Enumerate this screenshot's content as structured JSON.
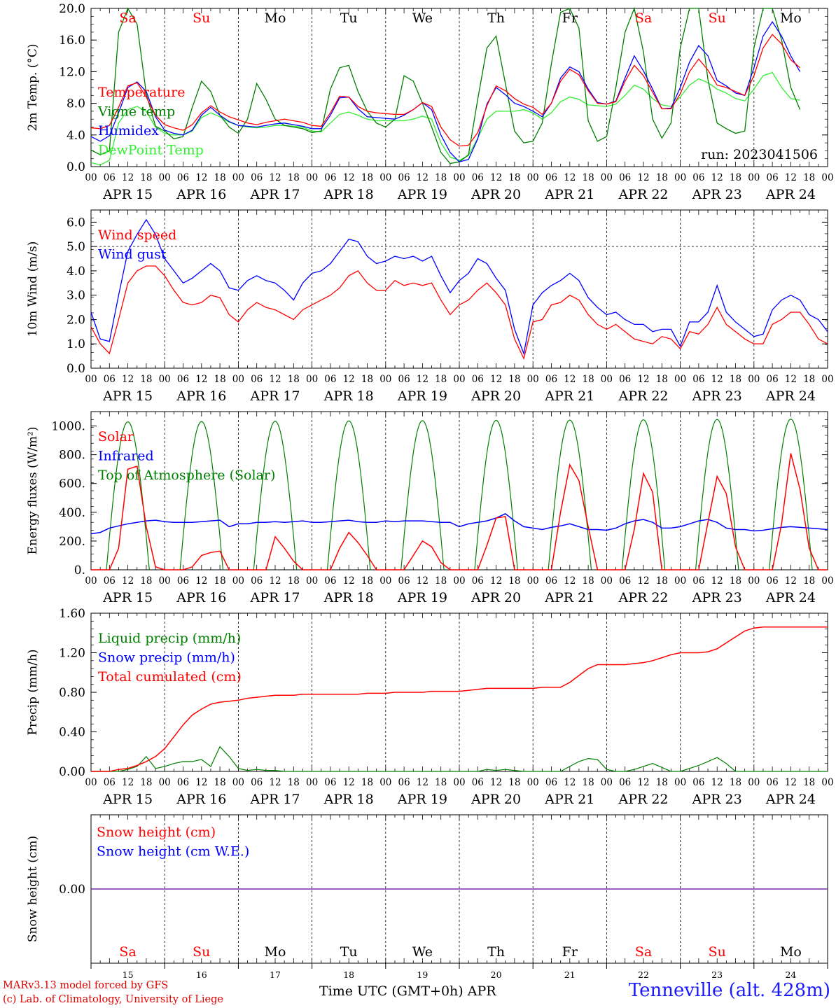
{
  "days": [
    "Sa",
    "Su",
    "Mo",
    "Tu",
    "We",
    "Th",
    "Fr",
    "Sa",
    "Su",
    "Mo"
  ],
  "weekend_flags": [
    true,
    true,
    false,
    false,
    false,
    false,
    false,
    true,
    true,
    false
  ],
  "dates": [
    "APR 15",
    "APR 16",
    "APR 17",
    "APR 18",
    "APR 19",
    "APR 20",
    "APR 21",
    "APR 22",
    "APR 23",
    "APR 24"
  ],
  "day_numbers": [
    "15",
    "16",
    "17",
    "18",
    "19",
    "20",
    "21",
    "22",
    "23",
    "24"
  ],
  "hour_labels": [
    "00",
    "06",
    "12",
    "18"
  ],
  "hour_label_end": "00",
  "run_label": "run: 2023041506",
  "footer": {
    "credit_1": "MARv3.13 model forced by GFS",
    "credit_2": "(c) Lab. of Climatology, University of Liege",
    "x_title": "Time UTC (GMT+0h) APR",
    "station": "Tenneville (alt. 428m)"
  },
  "colors": {
    "red": "#ff0000",
    "green": "#008000",
    "blue": "#0000ff",
    "lightgreen": "#33ee33",
    "purple": "#7a2aa8",
    "weekend": "#ff0000"
  },
  "chart_data": [
    {
      "type": "line",
      "ylabel": "2m Temp. (°C)",
      "ylim": [
        0,
        20
      ],
      "ytick_labels": [
        "0.0",
        "4.0",
        "8.0",
        "12.0",
        "16.0",
        "20.0"
      ],
      "x": "hours since APR 15 00 UTC, every 3 h",
      "series": [
        {
          "name": "Temperature",
          "color": "red",
          "values": [
            4.9,
            4.8,
            5.2,
            7.5,
            10.2,
            10.6,
            8.8,
            6.5,
            5.3,
            4.9,
            4.6,
            5.3,
            6.8,
            7.7,
            6.9,
            6.3,
            5.9,
            5.5,
            5.3,
            5.6,
            5.8,
            6.0,
            5.8,
            5.6,
            5.2,
            5.1,
            6.8,
            8.9,
            8.8,
            7.6,
            7.0,
            6.8,
            6.7,
            6.6,
            6.6,
            7.2,
            8.1,
            7.6,
            5.0,
            3.4,
            2.6,
            2.7,
            4.3,
            7.7,
            10.2,
            9.6,
            8.6,
            7.9,
            7.5,
            6.6,
            8.0,
            10.8,
            12.3,
            11.6,
            9.6,
            8.0,
            7.9,
            8.2,
            10.8,
            12.8,
            11.5,
            9.4,
            7.3,
            7.3,
            9.2,
            12.0,
            13.6,
            12.2,
            10.3,
            10.0,
            9.5,
            9.0,
            11.5,
            15.0,
            16.7,
            15.5,
            13.5,
            12.5
          ]
        },
        {
          "name": "Vigne temp",
          "color": "green",
          "values": [
            2.1,
            1.5,
            2.0,
            17.0,
            20.0,
            18.0,
            9.2,
            5.1,
            4.5,
            3.5,
            3.8,
            7.5,
            10.8,
            9.5,
            6.5,
            5.0,
            4.2,
            6.0,
            10.5,
            8.5,
            6.0,
            5.2,
            5.0,
            4.8,
            4.3,
            4.5,
            9.8,
            12.5,
            12.8,
            9.5,
            7.0,
            5.5,
            5.0,
            6.0,
            11.5,
            10.8,
            8.0,
            5.0,
            1.8,
            0.4,
            0.6,
            1.5,
            8.5,
            15.0,
            16.5,
            10.5,
            4.5,
            3.0,
            3.2,
            5.5,
            13.0,
            19.5,
            20.0,
            17.5,
            5.8,
            3.2,
            3.8,
            10.0,
            17.0,
            20.0,
            14.5,
            6.0,
            3.6,
            5.5,
            15.0,
            20.0,
            20.0,
            11.0,
            5.5,
            4.8,
            4.2,
            4.5,
            15.0,
            20.0,
            20.0,
            16.0,
            10.0,
            7.2
          ]
        },
        {
          "name": "Humidex",
          "color": "blue",
          "values": [
            3.8,
            3.2,
            3.9,
            6.8,
            10.0,
            10.7,
            9.5,
            6.3,
            4.6,
            4.2,
            4.0,
            4.6,
            6.5,
            7.5,
            6.5,
            5.7,
            5.2,
            5.1,
            5.0,
            5.2,
            5.4,
            5.5,
            5.3,
            5.1,
            4.8,
            4.8,
            6.5,
            8.7,
            8.8,
            7.3,
            6.3,
            6.2,
            6.1,
            6.0,
            6.5,
            7.2,
            8.1,
            7.2,
            4.0,
            1.8,
            0.6,
            0.9,
            3.5,
            7.9,
            10.0,
            9.1,
            8.0,
            7.6,
            7.0,
            6.3,
            8.0,
            11.2,
            12.6,
            12.0,
            9.8,
            8.1,
            7.9,
            8.3,
            11.2,
            14.0,
            12.1,
            9.8,
            7.3,
            7.4,
            10.0,
            13.2,
            15.3,
            14.0,
            10.9,
            10.2,
            9.3,
            9.0,
            12.5,
            16.5,
            18.3,
            16.5,
            14.0,
            12.0
          ]
        },
        {
          "name": "DewPoint Temp",
          "color": "lightgreen",
          "values": [
            0.5,
            0.2,
            0.8,
            5.5,
            7.2,
            7.6,
            7.0,
            5.0,
            4.2,
            4.0,
            4.0,
            4.5,
            6.2,
            6.8,
            6.3,
            5.6,
            5.2,
            5.0,
            4.9,
            5.0,
            5.2,
            5.2,
            5.1,
            5.0,
            4.5,
            4.4,
            5.5,
            6.6,
            6.9,
            6.5,
            6.0,
            5.8,
            5.8,
            5.8,
            5.8,
            6.0,
            6.4,
            6.0,
            3.0,
            1.2,
            0.8,
            1.4,
            3.6,
            6.0,
            7.0,
            7.0,
            7.0,
            7.2,
            6.8,
            6.0,
            6.8,
            8.2,
            8.8,
            8.5,
            7.8,
            7.7,
            7.6,
            7.9,
            9.0,
            10.3,
            9.8,
            8.6,
            7.8,
            7.6,
            8.8,
            10.3,
            11.1,
            10.6,
            9.8,
            9.3,
            8.6,
            8.3,
            9.8,
            11.5,
            11.9,
            10.0,
            8.6,
            8.4
          ]
        }
      ]
    },
    {
      "type": "line",
      "ylabel": "10m Wind (m/s)",
      "ylim": [
        0,
        6.5
      ],
      "ytick_labels": [
        "0.0",
        "1.0",
        "2.0",
        "3.0",
        "4.0",
        "5.0",
        "6.0"
      ],
      "series": [
        {
          "name": "Wind speed",
          "color": "red",
          "values": [
            1.7,
            1.0,
            0.6,
            2.0,
            3.5,
            4.0,
            4.2,
            4.2,
            3.8,
            3.2,
            2.7,
            2.6,
            2.7,
            3.0,
            2.9,
            2.2,
            1.9,
            2.4,
            2.7,
            2.5,
            2.4,
            2.2,
            2.0,
            2.4,
            2.6,
            2.8,
            3.0,
            3.3,
            3.8,
            4.0,
            3.5,
            3.2,
            3.2,
            3.6,
            3.4,
            3.5,
            3.4,
            3.5,
            2.8,
            2.2,
            2.6,
            2.8,
            3.2,
            3.5,
            3.1,
            2.6,
            1.2,
            0.4,
            1.9,
            2.0,
            2.6,
            2.7,
            3.0,
            2.8,
            2.2,
            1.8,
            1.6,
            1.8,
            1.5,
            1.2,
            1.1,
            1.0,
            1.3,
            1.2,
            0.8,
            1.5,
            1.4,
            1.8,
            2.5,
            1.8,
            1.5,
            1.2,
            1.0,
            1.0,
            1.8,
            2.0,
            2.3,
            2.3,
            1.8,
            1.2,
            1.0
          ]
        },
        {
          "name": "Wind gust",
          "color": "blue",
          "values": [
            2.3,
            1.2,
            1.1,
            3.0,
            4.8,
            5.5,
            6.1,
            5.5,
            4.5,
            4.0,
            3.5,
            3.7,
            4.0,
            4.3,
            4.0,
            3.3,
            3.2,
            3.6,
            3.8,
            3.6,
            3.5,
            3.2,
            2.8,
            3.5,
            3.9,
            4.0,
            4.3,
            4.8,
            5.3,
            5.2,
            4.6,
            4.3,
            4.4,
            4.6,
            4.5,
            4.6,
            4.4,
            4.6,
            3.8,
            3.1,
            3.6,
            3.9,
            4.5,
            4.3,
            3.7,
            3.2,
            1.6,
            0.6,
            2.6,
            3.1,
            3.4,
            3.6,
            3.9,
            3.6,
            2.9,
            2.5,
            2.2,
            2.3,
            2.0,
            1.8,
            1.8,
            1.5,
            1.6,
            1.6,
            0.9,
            1.9,
            1.9,
            2.3,
            3.4,
            2.3,
            1.9,
            1.6,
            1.3,
            1.4,
            2.4,
            2.8,
            3.0,
            2.8,
            2.2,
            2.0,
            1.5
          ]
        }
      ]
    },
    {
      "type": "line",
      "ylabel": "Energy fluxes (W/m²)",
      "ylim": [
        0,
        1100
      ],
      "ytick_labels": [
        "0.",
        "200.",
        "400.",
        "600.",
        "800.",
        "1000."
      ],
      "series": [
        {
          "name": "Solar",
          "color": "red",
          "values": [
            0,
            0,
            0,
            150,
            700,
            720,
            300,
            20,
            0,
            0,
            0,
            20,
            100,
            120,
            130,
            0,
            0,
            0,
            0,
            0,
            230,
            150,
            60,
            0,
            0,
            0,
            0,
            150,
            260,
            190,
            100,
            0,
            0,
            0,
            0,
            100,
            200,
            160,
            50,
            0,
            0,
            0,
            0,
            170,
            360,
            370,
            0,
            0,
            0,
            0,
            0,
            400,
            730,
            620,
            300,
            0,
            0,
            0,
            0,
            280,
            670,
            540,
            0,
            0,
            0,
            0,
            0,
            330,
            650,
            530,
            160,
            0,
            0,
            0,
            0,
            320,
            810,
            560,
            150,
            0,
            0
          ]
        },
        {
          "name": "Infrared",
          "color": "blue",
          "values": [
            250,
            260,
            290,
            305,
            320,
            330,
            340,
            345,
            335,
            330,
            330,
            330,
            335,
            340,
            345,
            300,
            320,
            320,
            330,
            330,
            335,
            330,
            335,
            340,
            330,
            330,
            335,
            340,
            345,
            335,
            330,
            330,
            340,
            335,
            340,
            340,
            340,
            335,
            330,
            330,
            300,
            320,
            330,
            340,
            360,
            390,
            340,
            300,
            290,
            280,
            295,
            305,
            320,
            300,
            280,
            280,
            275,
            290,
            320,
            340,
            350,
            330,
            290,
            290,
            300,
            320,
            340,
            350,
            330,
            290,
            280,
            280,
            270,
            275,
            285,
            295,
            300,
            295,
            290,
            285,
            280
          ]
        },
        {
          "name": "Top of Atmosphere (Solar)",
          "color": "green",
          "peak": 1050
        }
      ]
    },
    {
      "type": "line",
      "ylabel": "Precip (mm/h)",
      "ylim": [
        0,
        1.6
      ],
      "ytick_labels": [
        "0.00",
        "0.40",
        "0.80",
        "1.20",
        "1.60"
      ],
      "series": [
        {
          "name": "Liquid precip (mm/h)",
          "color": "green",
          "values": [
            0,
            0,
            0,
            0,
            0.02,
            0.05,
            0.15,
            0.03,
            0.05,
            0.08,
            0.1,
            0.1,
            0.12,
            0.05,
            0.25,
            0.15,
            0.03,
            0.01,
            0.02,
            0.01,
            0.01,
            0,
            0,
            0,
            0,
            0,
            0,
            0,
            0,
            0,
            0,
            0,
            0,
            0,
            0,
            0,
            0,
            0,
            0,
            0,
            0,
            0,
            0,
            0.02,
            0.01,
            0.02,
            0.01,
            0,
            0,
            0,
            0,
            0,
            0.05,
            0.1,
            0.13,
            0.12,
            0.02,
            0,
            0,
            0.02,
            0.05,
            0.08,
            0.04,
            0,
            0,
            0.03,
            0.06,
            0.1,
            0.14,
            0.08,
            0,
            0,
            0,
            0,
            0,
            0,
            0,
            0,
            0,
            0,
            0
          ]
        },
        {
          "name": "Snow precip (mm/h)",
          "color": "blue",
          "values": []
        },
        {
          "name": "Total cumulated (cm)",
          "color": "red",
          "values": [
            0,
            0,
            0,
            0.02,
            0.03,
            0.06,
            0.1,
            0.15,
            0.23,
            0.35,
            0.47,
            0.57,
            0.63,
            0.68,
            0.7,
            0.71,
            0.72,
            0.74,
            0.75,
            0.76,
            0.77,
            0.77,
            0.77,
            0.78,
            0.78,
            0.78,
            0.78,
            0.78,
            0.78,
            0.78,
            0.79,
            0.79,
            0.79,
            0.8,
            0.8,
            0.8,
            0.8,
            0.81,
            0.81,
            0.81,
            0.81,
            0.82,
            0.83,
            0.84,
            0.84,
            0.84,
            0.84,
            0.84,
            0.84,
            0.85,
            0.85,
            0.85,
            0.9,
            0.97,
            1.04,
            1.08,
            1.08,
            1.08,
            1.08,
            1.09,
            1.1,
            1.12,
            1.15,
            1.18,
            1.2,
            1.2,
            1.2,
            1.21,
            1.24,
            1.3,
            1.36,
            1.42,
            1.45,
            1.46,
            1.46,
            1.46,
            1.46,
            1.46,
            1.46,
            1.46,
            1.46
          ]
        }
      ]
    },
    {
      "type": "line",
      "ylabel": "Snow height (cm)",
      "ytick_labels": [
        "0.00"
      ],
      "series": [
        {
          "name": "Snow height (cm)",
          "color": "red",
          "values": [
            0
          ]
        },
        {
          "name": "Snow height (cm W.E.)",
          "color": "blue",
          "values": [
            0
          ]
        }
      ]
    }
  ]
}
